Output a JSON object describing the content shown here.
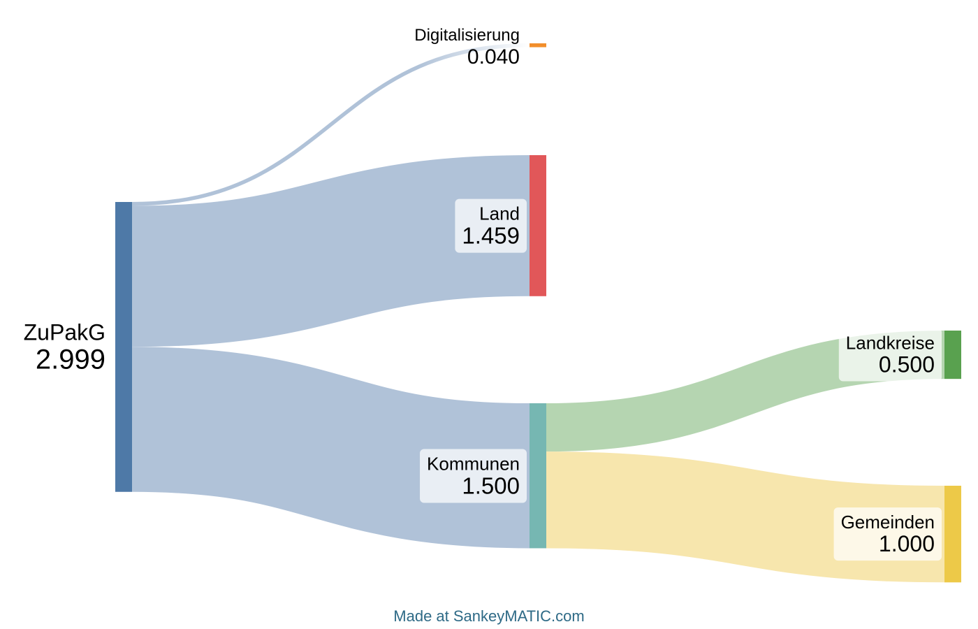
{
  "chart_data": {
    "type": "sankey",
    "nodes": [
      {
        "id": "ZuPakG",
        "label": "ZuPakG",
        "value": "2.999",
        "color": "#4e79a7"
      },
      {
        "id": "Digitalisierung",
        "label": "Digitalisierung",
        "value": "0.040",
        "color": "#f28e2b"
      },
      {
        "id": "Land",
        "label": "Land",
        "value": "1.459",
        "color": "#e15759"
      },
      {
        "id": "Kommunen",
        "label": "Kommunen",
        "value": "1.500",
        "color": "#76b7b2"
      },
      {
        "id": "Landkreise",
        "label": "Landkreise",
        "value": "0.500",
        "color": "#59a14f"
      },
      {
        "id": "Gemeinden",
        "label": "Gemeinden",
        "value": "1.000",
        "color": "#edc948"
      }
    ],
    "links": [
      {
        "source": "ZuPakG",
        "target": "Digitalisierung",
        "value": 0.04,
        "color": "#b0c2d8"
      },
      {
        "source": "ZuPakG",
        "target": "Land",
        "value": 1.459,
        "color": "#b0c2d8"
      },
      {
        "source": "ZuPakG",
        "target": "Kommunen",
        "value": 1.5,
        "color": "#b0c2d8"
      },
      {
        "source": "Kommunen",
        "target": "Landkreise",
        "value": 0.5,
        "color": "#b5d5b1"
      },
      {
        "source": "Kommunen",
        "target": "Gemeinden",
        "value": 1.0,
        "color": "#f7e6ad"
      }
    ]
  },
  "footer": {
    "text": "Made at SankeyMATIC.com"
  }
}
